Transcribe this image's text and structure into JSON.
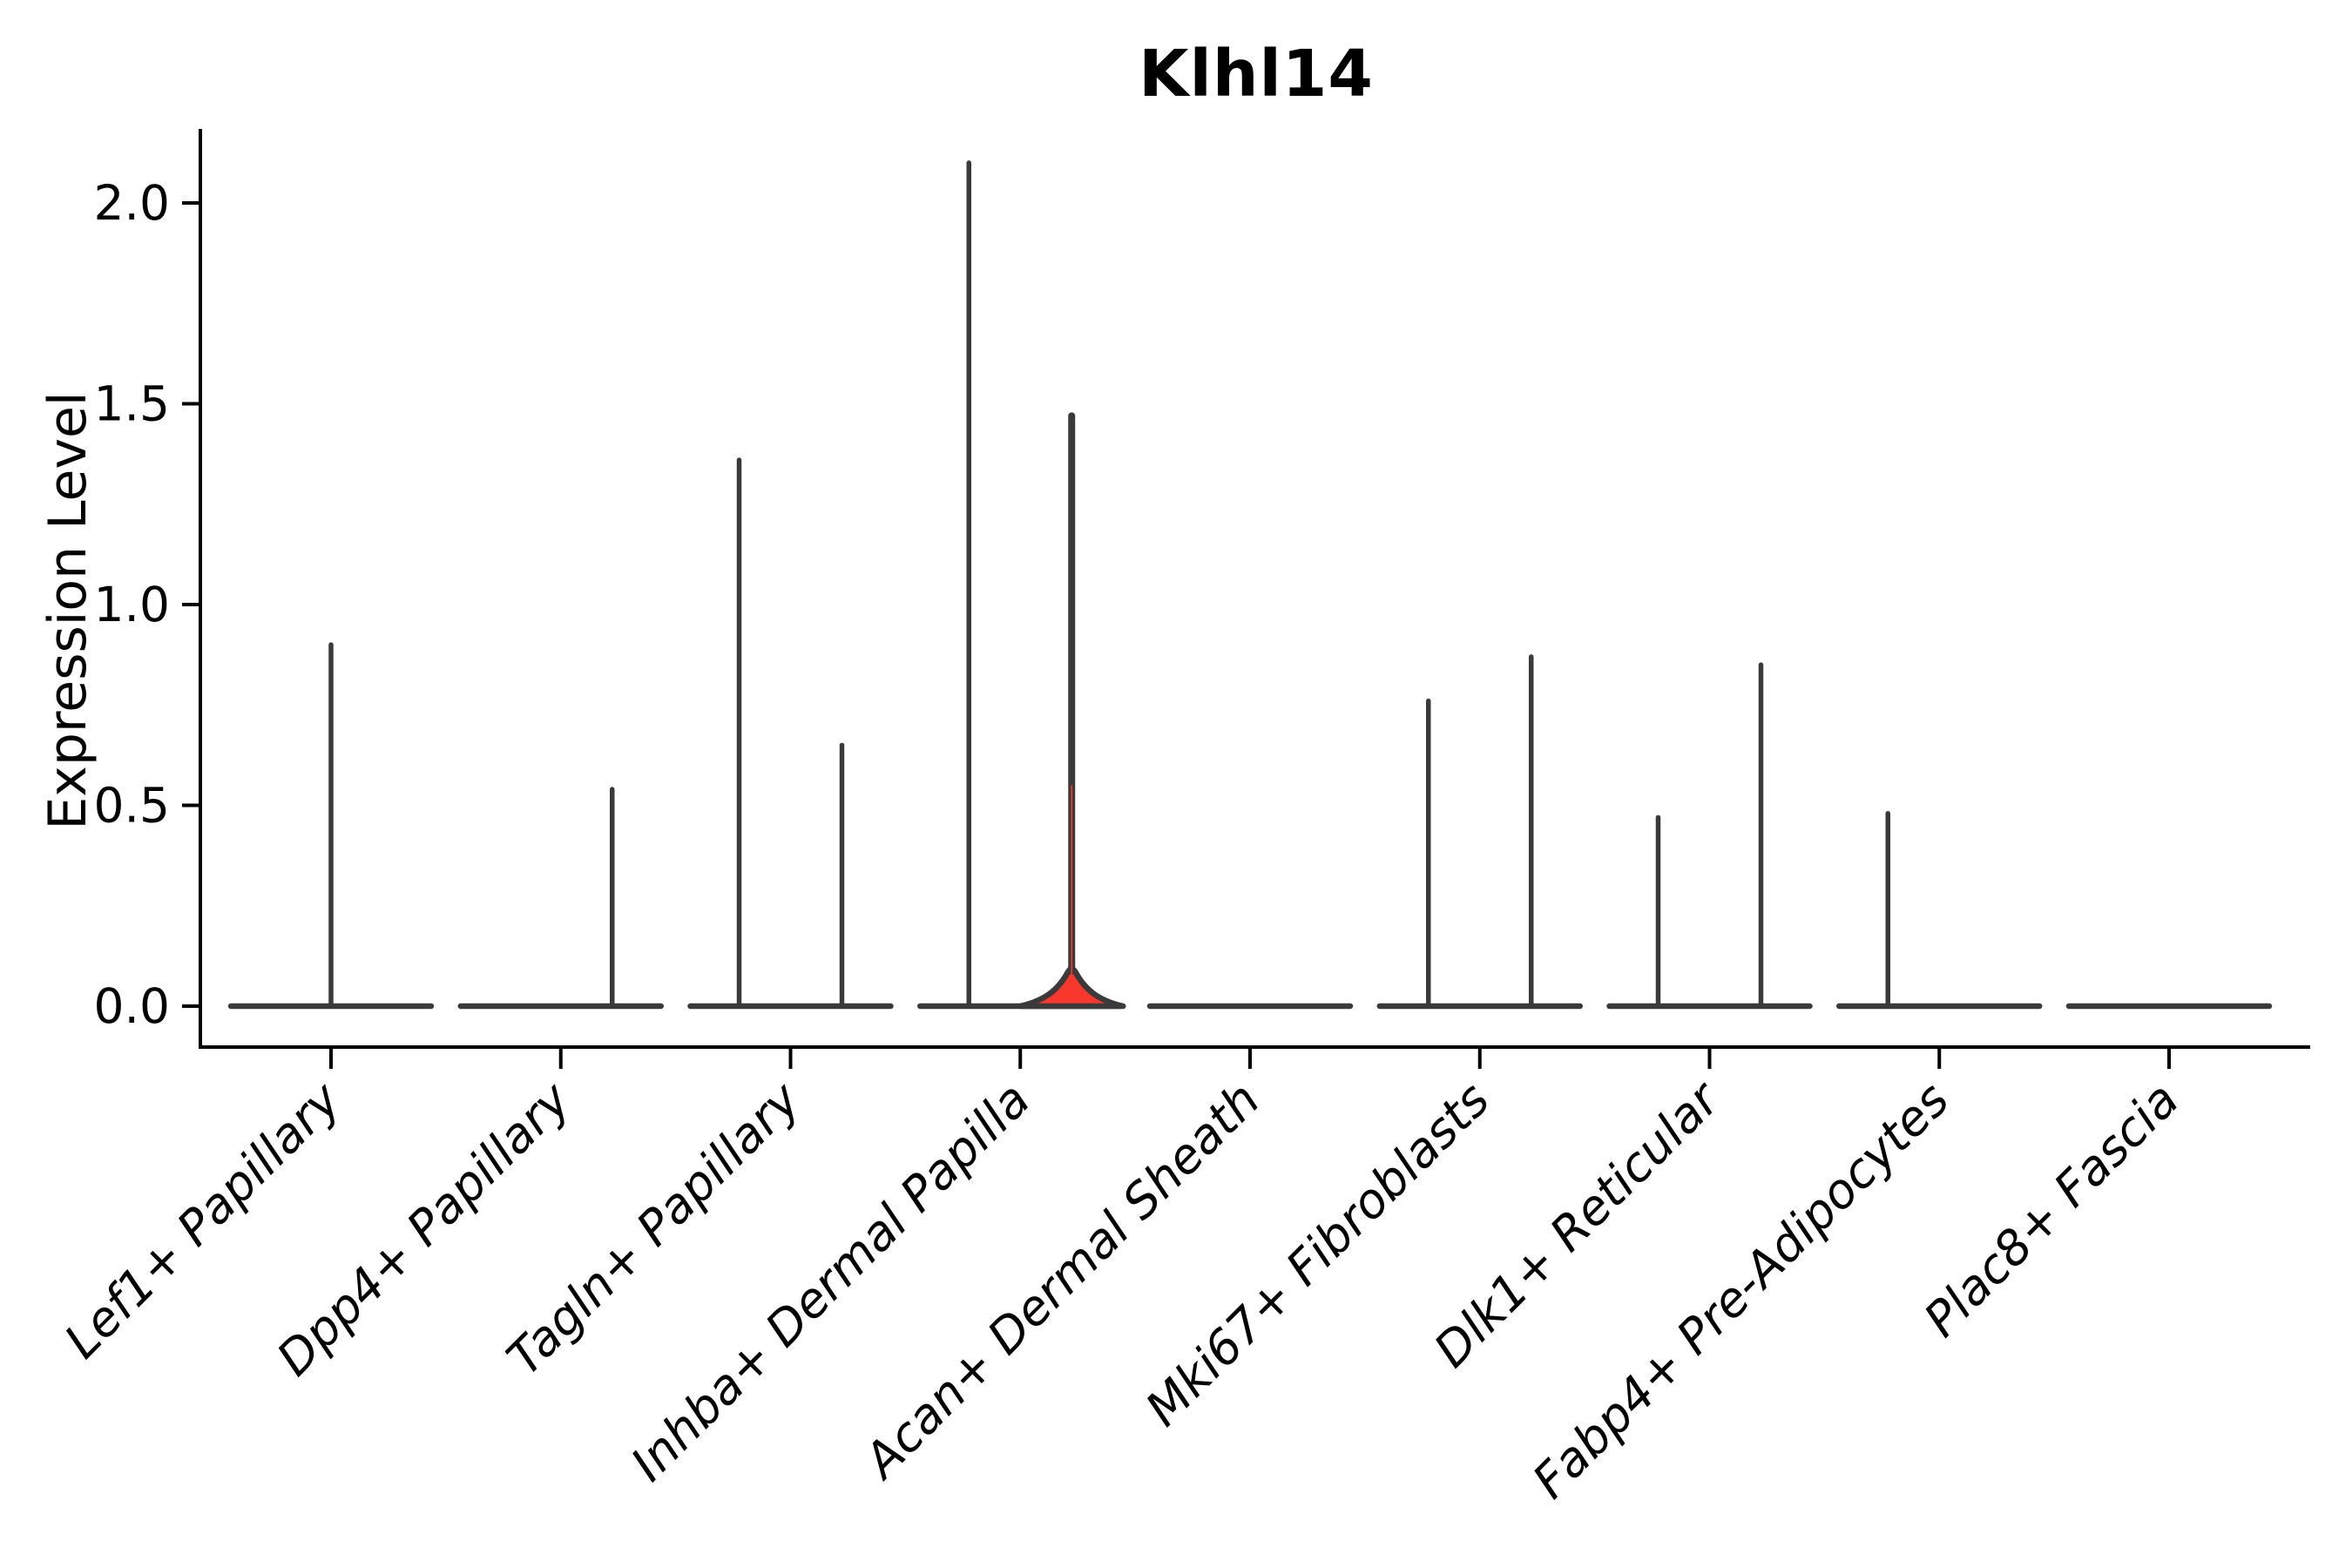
{
  "title": "Klhl14",
  "chart_data": {
    "type": "violin",
    "title": "Klhl14",
    "xlabel": "",
    "ylabel": "Expression Level",
    "ylim": [
      0,
      2.2
    ],
    "yticks": [
      "0.0",
      "0.5",
      "1.0",
      "1.5",
      "2.0"
    ],
    "ytick_values": [
      0.0,
      0.5,
      1.0,
      1.5,
      2.0
    ],
    "grid": false,
    "legend": "none",
    "x_tick_rotation_deg": 45,
    "categories": [
      "Lef1+ Papillary",
      "Dpp4+ Papillary",
      "Tagln+ Papillary",
      "Inhba+ Dermal Papilla",
      "Acan+ Dermal Sheath",
      "Mki67+ Fibroblasts",
      "Dlk1+ Reticular",
      "Fabp4+ Pre-Adipocytes",
      "Plac8+ Fascia"
    ],
    "violins": [
      {
        "category": "Lef1+ Papillary",
        "halves": [
          {
            "position": "center",
            "peak": 0.9,
            "filled": false
          }
        ]
      },
      {
        "category": "Dpp4+ Papillary",
        "halves": [
          {
            "position": "right",
            "peak": 0.54,
            "filled": false
          }
        ]
      },
      {
        "category": "Tagln+ Papillary",
        "halves": [
          {
            "position": "left",
            "peak": 1.36,
            "filled": false
          },
          {
            "position": "right",
            "peak": 0.65,
            "filled": false
          }
        ]
      },
      {
        "category": "Inhba+ Dermal Papilla",
        "halves": [
          {
            "position": "left",
            "peak": 2.1,
            "filled": false
          },
          {
            "position": "right",
            "peak": 1.47,
            "filled": true,
            "base_bump": true
          }
        ]
      },
      {
        "category": "Acan+ Dermal Sheath",
        "halves": []
      },
      {
        "category": "Mki67+ Fibroblasts",
        "halves": [
          {
            "position": "left",
            "peak": 0.76,
            "filled": false
          },
          {
            "position": "right",
            "peak": 0.87,
            "filled": false
          }
        ]
      },
      {
        "category": "Dlk1+ Reticular",
        "halves": [
          {
            "position": "left",
            "peak": 0.47,
            "filled": false
          },
          {
            "position": "right",
            "peak": 0.85,
            "filled": false
          }
        ]
      },
      {
        "category": "Fabp4+ Pre-Adipocytes",
        "halves": [
          {
            "position": "left",
            "peak": 0.48,
            "filled": false
          }
        ]
      },
      {
        "category": "Plac8+ Fascia",
        "halves": []
      }
    ],
    "colors": {
      "violin_outline": "#3a3a3a",
      "highlight_fill": "#f8372d",
      "axis": "#000000",
      "text": "#000000",
      "background": "#ffffff"
    }
  }
}
